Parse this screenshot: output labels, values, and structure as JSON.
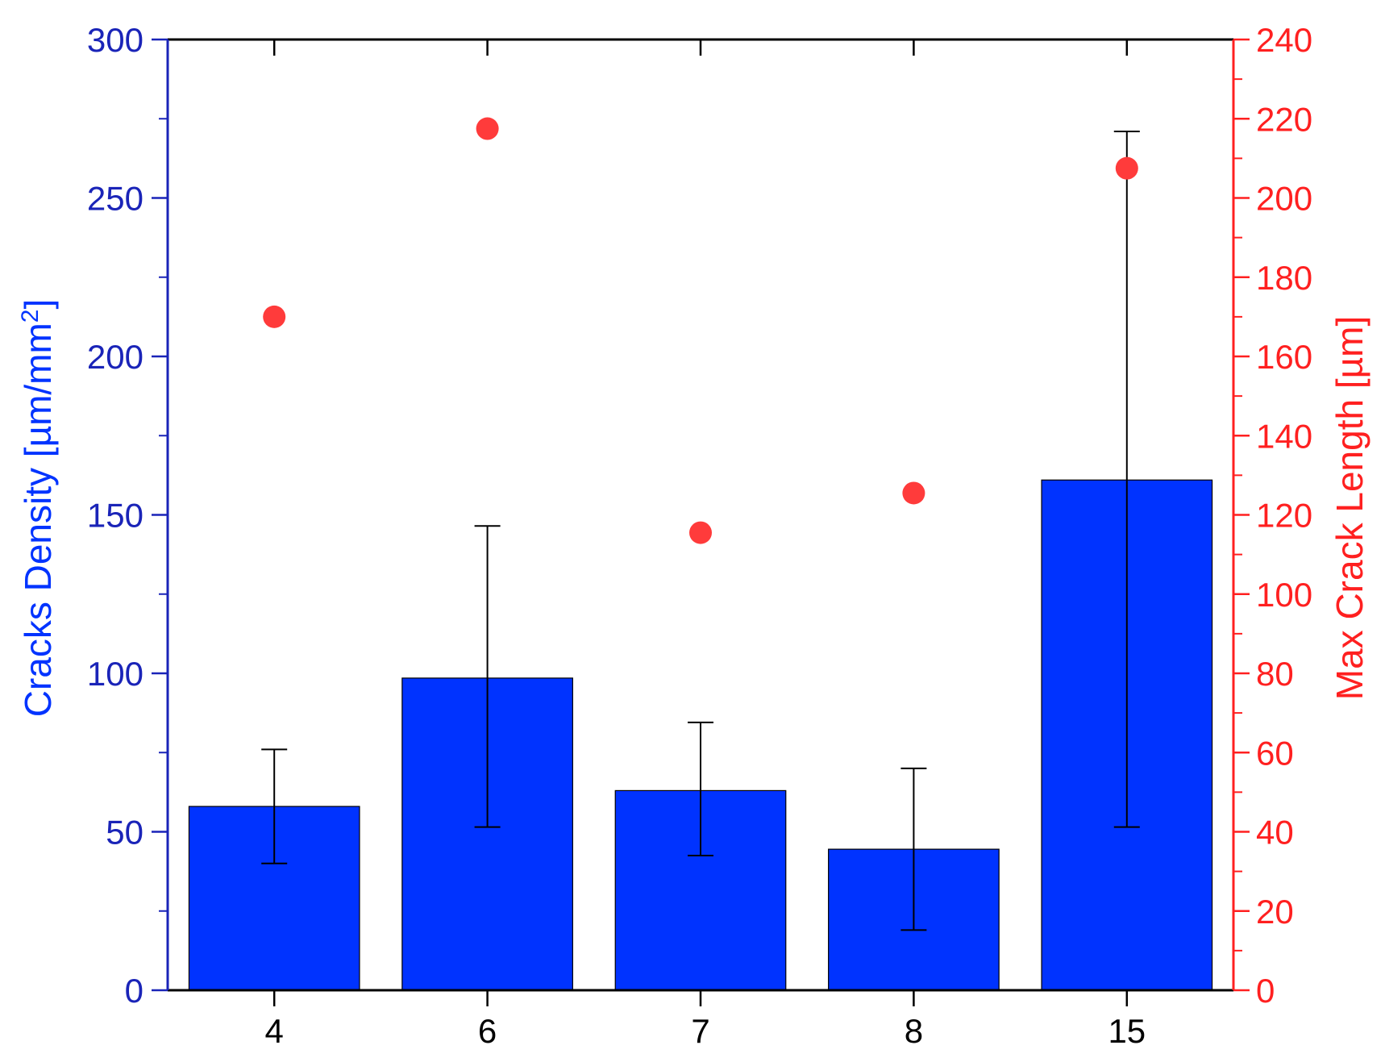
{
  "chart_data": {
    "type": "bar",
    "categories": [
      "4",
      "6",
      "7",
      "8",
      "15"
    ],
    "left_axis": {
      "label": "Cracks Density [µm/mm²]",
      "label_main": "Cracks Density [µm/mm",
      "label_sup": "2",
      "label_tail": "]",
      "ylim": [
        0,
        300
      ],
      "ticks": [
        "0",
        "50",
        "100",
        "150",
        "200",
        "250",
        "300"
      ],
      "color": "#1a24b8"
    },
    "right_axis": {
      "label": "Max Crack Length [µm]",
      "ylim": [
        0,
        240
      ],
      "ticks": [
        "0",
        "20",
        "40",
        "60",
        "80",
        "100",
        "120",
        "140",
        "160",
        "180",
        "200",
        "220",
        "240"
      ],
      "color": "#ff2020"
    },
    "series": [
      {
        "type": "bar",
        "axis": "left",
        "values": [
          58,
          98.5,
          63,
          44.5,
          161
        ],
        "error_low": [
          40,
          51.5,
          42.5,
          19,
          51.5
        ],
        "error_high": [
          76,
          146.5,
          84.5,
          70,
          271
        ],
        "color": "#0033ff"
      },
      {
        "type": "scatter",
        "axis": "right",
        "values": [
          170,
          217.5,
          115.5,
          125.5,
          207.5
        ],
        "color": "#ff3b3b"
      }
    ],
    "title": "",
    "xlabel": "",
    "grid": false
  }
}
